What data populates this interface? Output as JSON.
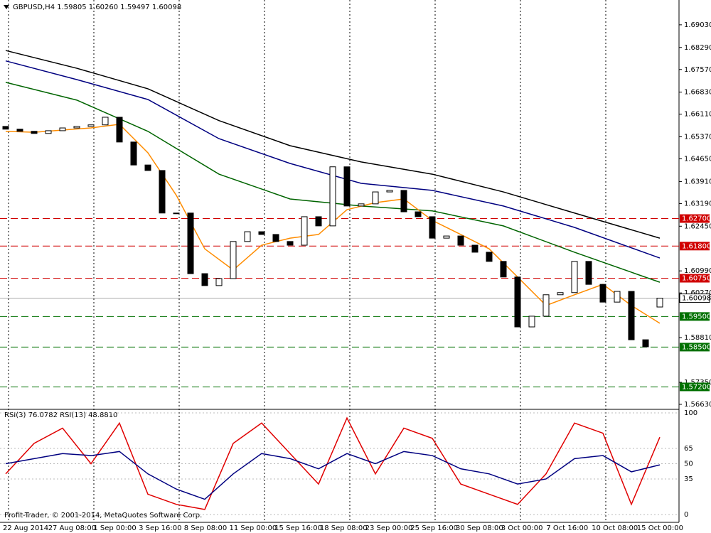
{
  "chart_data": {
    "type": "candlestick",
    "title": "GBPUSD,H4  1.59805 1.60260 1.59497 1.60098",
    "footer": "Profit-Trader, © 2001-2014, MetaQuotes Software Corp.",
    "x_labels": [
      "22 Aug 2014",
      "27 Aug 08:00",
      "1 Sep 00:00",
      "3 Sep 16:00",
      "8 Sep 08:00",
      "11 Sep 00:00",
      "15 Sep 16:00",
      "18 Sep 08:00",
      "23 Sep 00:00",
      "25 Sep 16:00",
      "30 Sep 08:00",
      "3 Oct 00:00",
      "7 Oct 16:00",
      "10 Oct 08:00",
      "15 Oct 00:00"
    ],
    "open": [
      1.6571,
      1.6562,
      1.6555,
      1.6548,
      1.6557,
      1.6566,
      1.6571,
      1.6576,
      1.6601,
      1.652,
      1.6445,
      1.6427,
      1.6288,
      1.6288,
      1.609,
      1.6051,
      1.6074,
      1.6195,
      1.6227,
      1.6218,
      1.6195,
      1.6183,
      1.6276,
      1.6246,
      1.6439,
      1.6311,
      1.6318,
      1.6357,
      1.6362,
      1.6292,
      1.6276,
      1.6206,
      1.6213,
      1.6183,
      1.616,
      1.613,
      1.6079,
      1.5916,
      1.5951,
      1.6021,
      1.6028,
      1.613,
      1.6055,
      1.5997,
      1.6032,
      1.5874,
      1.5981
    ],
    "close": [
      1.6562,
      1.6555,
      1.6548,
      1.6557,
      1.6566,
      1.6571,
      1.6576,
      1.6601,
      1.652,
      1.6445,
      1.6427,
      1.6288,
      1.6288,
      1.609,
      1.6051,
      1.6074,
      1.6195,
      1.6227,
      1.6218,
      1.6195,
      1.6183,
      1.6276,
      1.6246,
      1.6439,
      1.6311,
      1.6318,
      1.6357,
      1.6362,
      1.6292,
      1.6276,
      1.6206,
      1.6213,
      1.6183,
      1.616,
      1.613,
      1.6079,
      1.5916,
      1.5951,
      1.6021,
      1.6028,
      1.613,
      1.6055,
      1.5997,
      1.6032,
      1.5874,
      1.5851,
      1.601
    ],
    "series": [
      {
        "color": "#000000",
        "x": [
          0,
          5,
          10,
          15,
          20,
          25,
          30,
          35,
          40,
          46
        ],
        "values": [
          1.6819,
          1.6761,
          1.6694,
          1.659,
          1.6508,
          1.6455,
          1.6415,
          1.6357,
          1.6288,
          1.6206
        ]
      },
      {
        "color": "#000080",
        "x": [
          0,
          5,
          10,
          15,
          20,
          25,
          30,
          35,
          40,
          46
        ],
        "values": [
          1.6785,
          1.6724,
          1.6659,
          1.6531,
          1.645,
          1.6385,
          1.6362,
          1.6311,
          1.6241,
          1.6141
        ]
      },
      {
        "color": "#006400",
        "x": [
          0,
          5,
          10,
          15,
          20,
          25,
          30,
          35,
          40,
          46
        ],
        "values": [
          1.6715,
          1.6657,
          1.6555,
          1.6415,
          1.6334,
          1.6311,
          1.6295,
          1.6246,
          1.616,
          1.6062
        ]
      },
      {
        "color": "#ff8c00",
        "x": [
          0,
          2,
          4,
          6,
          8,
          10,
          12,
          14,
          16,
          18,
          20,
          22,
          24,
          26,
          28,
          30,
          32,
          34,
          36,
          38,
          40,
          42,
          44,
          46
        ],
        "values": [
          1.6555,
          1.6552,
          1.6559,
          1.6566,
          1.6578,
          1.6485,
          1.6346,
          1.6171,
          1.6102,
          1.6183,
          1.6206,
          1.6218,
          1.6299,
          1.6322,
          1.6334,
          1.6264,
          1.6218,
          1.6171,
          1.6079,
          1.5986,
          1.6021,
          1.6055,
          1.5986,
          1.5928
        ]
      }
    ],
    "ylim": [
      1.5649,
      1.6984
    ],
    "yticks": [
      {
        "value": 1.6903,
        "label": "1.69030"
      },
      {
        "value": 1.6829,
        "label": "1.68290"
      },
      {
        "value": 1.6757,
        "label": "1.67570"
      },
      {
        "value": 1.6683,
        "label": "1.66830"
      },
      {
        "value": 1.6611,
        "label": "1.66110"
      },
      {
        "value": 1.6537,
        "label": "1.65370"
      },
      {
        "value": 1.6465,
        "label": "1.64650"
      },
      {
        "value": 1.6391,
        "label": "1.63910"
      },
      {
        "value": 1.6319,
        "label": "1.63190"
      },
      {
        "value": 1.6245,
        "label": "1.62450"
      },
      {
        "value": 1.6099,
        "label": "1.60990"
      },
      {
        "value": 1.6027,
        "label": "1.60270"
      },
      {
        "value": 1.5881,
        "label": "1.58810"
      },
      {
        "value": 1.5735,
        "label": "1.57350"
      },
      {
        "value": 1.5663,
        "label": "1.56630"
      }
    ],
    "levels": [
      {
        "value": 1.627,
        "label": "1.62700",
        "color": "#d00000"
      },
      {
        "value": 1.618,
        "label": "1.61800",
        "color": "#d00000"
      },
      {
        "value": 1.6075,
        "label": "1.60750",
        "color": "#d00000"
      },
      {
        "value": 1.595,
        "label": "1.59500",
        "color": "#007000"
      },
      {
        "value": 1.585,
        "label": "1.58500",
        "color": "#007000"
      },
      {
        "value": 1.572,
        "label": "1.57200",
        "color": "#007000"
      }
    ],
    "current": {
      "value": 1.60098,
      "label": "1.60098"
    },
    "rsi": {
      "title": "RSI(3) 76.0782  RSI(13) 48.8810",
      "ylim": [
        0,
        100
      ],
      "yticks": [
        0,
        35,
        50,
        65,
        100
      ],
      "series": [
        {
          "color": "#e00000",
          "x": [
            0,
            2,
            4,
            6,
            8,
            10,
            12,
            14,
            16,
            18,
            20,
            22,
            24,
            26,
            28,
            30,
            32,
            34,
            36,
            38,
            40,
            42,
            44,
            46
          ],
          "values": [
            40,
            70,
            85,
            50,
            90,
            20,
            10,
            5,
            70,
            90,
            60,
            30,
            95,
            40,
            85,
            75,
            30,
            20,
            10,
            40,
            90,
            80,
            10,
            76.0782
          ]
        },
        {
          "color": "#000080",
          "x": [
            0,
            2,
            4,
            6,
            8,
            10,
            12,
            14,
            16,
            18,
            20,
            22,
            24,
            26,
            28,
            30,
            32,
            34,
            36,
            38,
            40,
            42,
            44,
            46
          ],
          "values": [
            50,
            55,
            60,
            58,
            62,
            40,
            25,
            15,
            40,
            60,
            55,
            45,
            60,
            50,
            62,
            58,
            45,
            40,
            30,
            35,
            55,
            58,
            42,
            48.881
          ]
        }
      ]
    }
  }
}
